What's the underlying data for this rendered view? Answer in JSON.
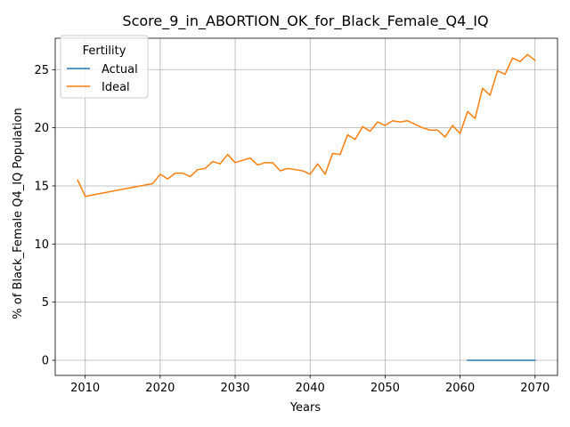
{
  "chart_data": {
    "type": "line",
    "title": "Score_9_in_ABORTION_OK_for_Black_Female_Q4_IQ",
    "xlabel": "Years",
    "ylabel": "% of Black_Female Q4_IQ Population",
    "xlim": [
      2006,
      2073
    ],
    "ylim": [
      -1.3,
      27.7
    ],
    "xticks": [
      2010,
      2020,
      2030,
      2040,
      2050,
      2060,
      2070
    ],
    "yticks": [
      0,
      5,
      10,
      15,
      20,
      25
    ],
    "grid": true,
    "legend": {
      "title": "Fertility",
      "placement": "top-left"
    },
    "series": [
      {
        "name": "Actual",
        "color": "#1f77b4",
        "x": [
          2061,
          2062,
          2063,
          2064,
          2065,
          2066,
          2067,
          2068,
          2069,
          2070
        ],
        "y": [
          0,
          0,
          0,
          0,
          0,
          0,
          0,
          0,
          0,
          0
        ]
      },
      {
        "name": "Ideal",
        "color": "#ff7f0e",
        "x": [
          2009,
          2010,
          2019,
          2020,
          2021,
          2022,
          2023,
          2024,
          2025,
          2026,
          2027,
          2028,
          2029,
          2030,
          2031,
          2032,
          2033,
          2034,
          2035,
          2036,
          2037,
          2038,
          2039,
          2040,
          2041,
          2042,
          2043,
          2044,
          2045,
          2046,
          2047,
          2048,
          2049,
          2050,
          2051,
          2052,
          2053,
          2054,
          2055,
          2056,
          2057,
          2058,
          2059,
          2060,
          2061,
          2062,
          2063,
          2064,
          2065,
          2066,
          2067,
          2068,
          2069,
          2070
        ],
        "y": [
          15.5,
          14.1,
          15.2,
          16.0,
          15.6,
          16.1,
          16.1,
          15.8,
          16.4,
          16.5,
          17.1,
          16.9,
          17.7,
          17.0,
          17.2,
          17.4,
          16.8,
          17.0,
          17.0,
          16.3,
          16.5,
          16.4,
          16.3,
          16.0,
          16.9,
          16.0,
          17.8,
          17.7,
          19.4,
          19.0,
          20.1,
          19.7,
          20.5,
          20.2,
          20.6,
          20.5,
          20.6,
          20.3,
          20.0,
          19.8,
          19.8,
          19.2,
          20.2,
          19.5,
          21.4,
          20.8,
          23.4,
          22.8,
          24.9,
          24.6,
          26.0,
          25.7,
          26.3,
          25.8
        ]
      }
    ]
  }
}
